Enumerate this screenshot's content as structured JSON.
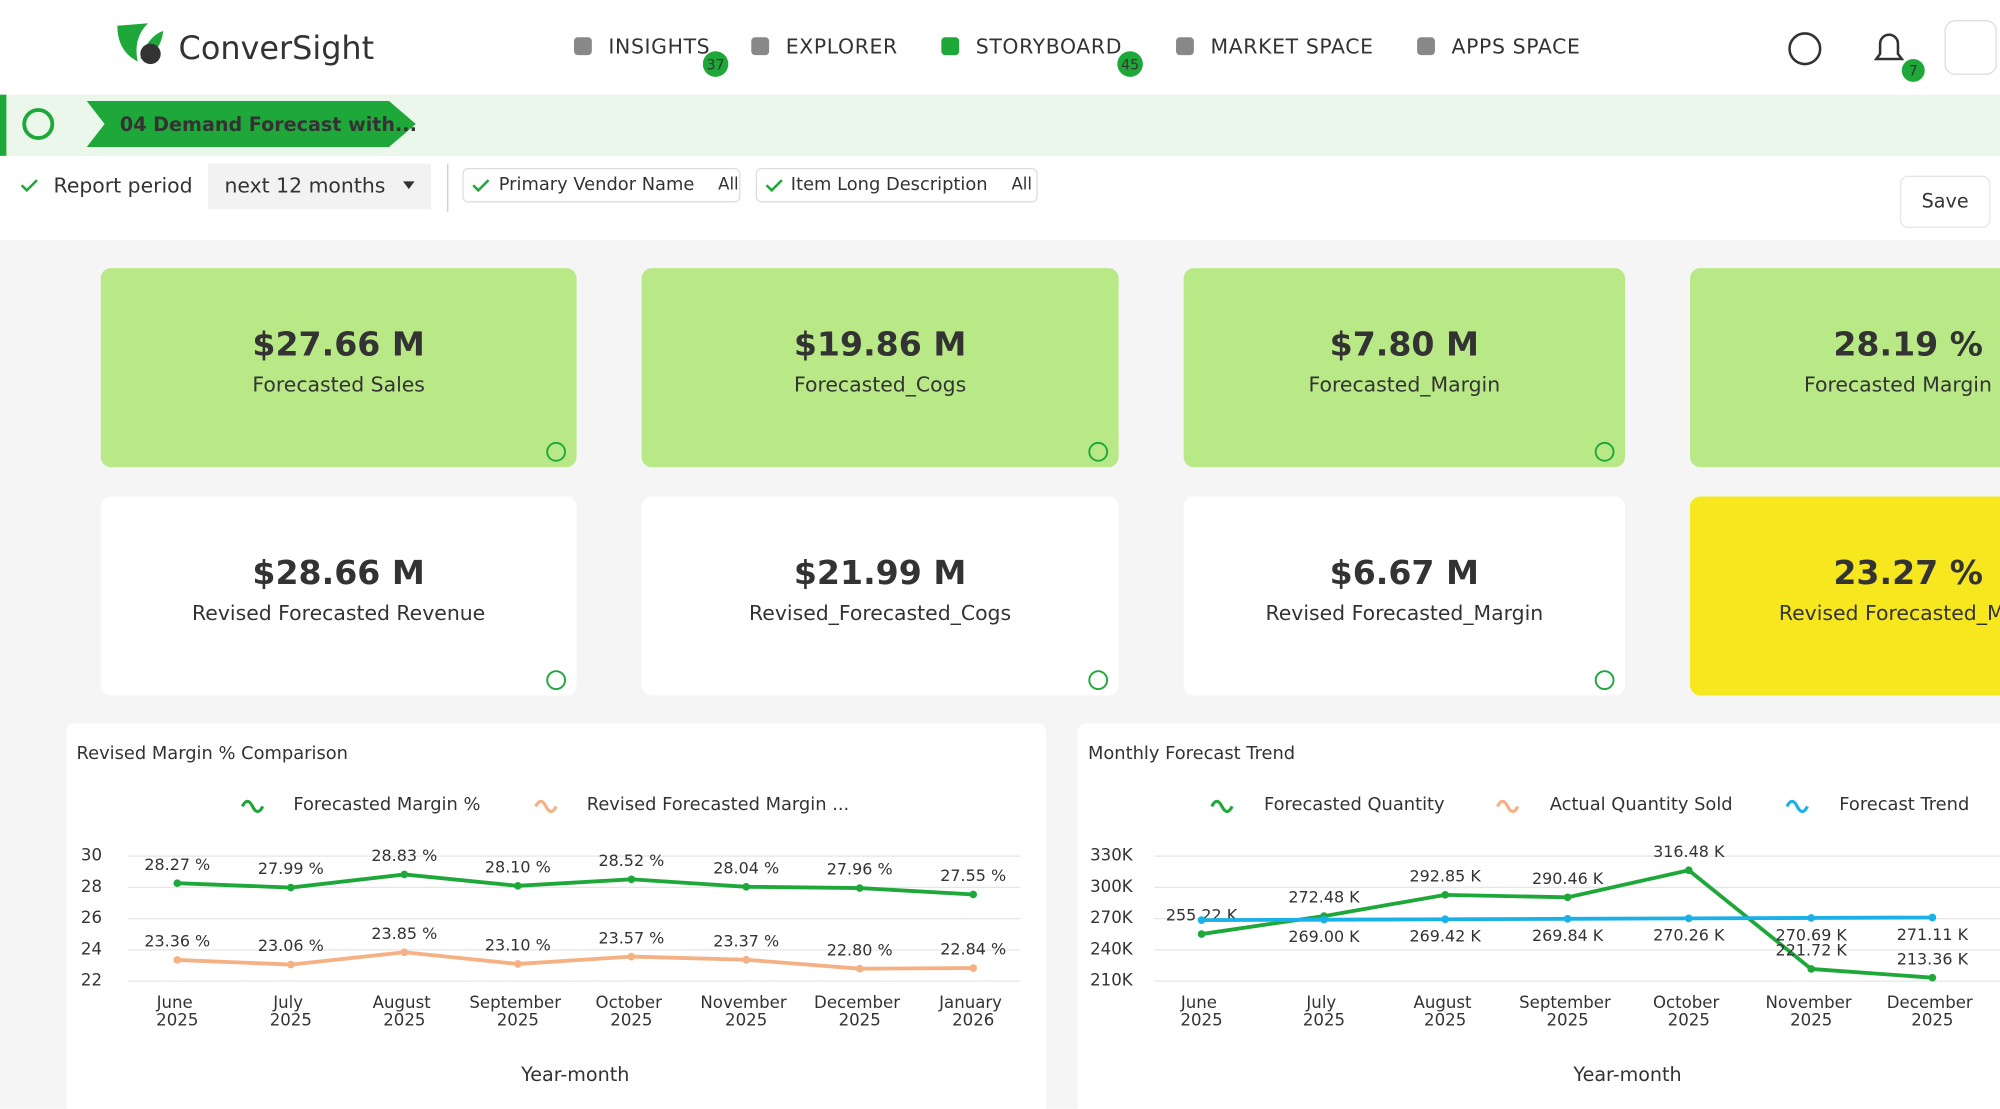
{
  "nav": {
    "logo": "ConverSight",
    "items": [
      {
        "label": "INSIGHTS",
        "badge": "37"
      },
      {
        "label": "EXPLORER"
      },
      {
        "label": "STORYBOARD",
        "badge": "45"
      },
      {
        "label": "MARKET SPACE"
      },
      {
        "label": "APPS SPACE"
      }
    ],
    "notifications": "7"
  },
  "breadcrumb": "04 Demand Forecast with...",
  "filters": {
    "period_label": "Report period",
    "period_value": "next 12 months",
    "chips": [
      {
        "label": "Primary Vendor Name",
        "value": "All"
      },
      {
        "label": "Item Long Description",
        "value": "All"
      }
    ],
    "save": "Save"
  },
  "kpis": [
    {
      "value": "$27.66 M",
      "label": "Forecasted Sales"
    },
    {
      "value": "$19.86 M",
      "label": "Forecasted_Cogs"
    },
    {
      "value": "$7.80 M",
      "label": "Forecasted_Margin"
    },
    {
      "value": "28.19 %",
      "label": "Forecasted Margin"
    },
    {
      "value": "$28.66 M",
      "label": "Revised Forecasted Revenue"
    },
    {
      "value": "$21.99 M",
      "label": "Revised_Forecasted_Cogs"
    },
    {
      "value": "$6.67 M",
      "label": "Revised Forecasted_Margin"
    },
    {
      "value": "23.27 %",
      "label": "Revised Forecasted_Ma"
    }
  ],
  "chart_data": [
    {
      "type": "line",
      "title": "Revised Margin % Comparison",
      "x_label": "Year-month",
      "categories": [
        "June 2025",
        "July 2025",
        "August 2025",
        "September 2025",
        "October 2025",
        "November 2025",
        "December 2025",
        "January 2026"
      ],
      "series": [
        {
          "name": "Forecasted Margin %",
          "color": "#1fa83a",
          "values": [
            28.27,
            27.99,
            28.83,
            28.1,
            28.52,
            28.04,
            27.96,
            27.55
          ],
          "value_labels": [
            "28.27 %",
            "27.99 %",
            "28.83 %",
            "28.10 %",
            "28.52 %",
            "28.04 %",
            "27.96 %",
            "27.55 %"
          ]
        },
        {
          "name": "Revised Forecasted Margin ...",
          "color": "#f5b083",
          "values": [
            23.36,
            23.06,
            23.85,
            23.1,
            23.57,
            23.37,
            22.8,
            22.84
          ],
          "value_labels": [
            "23.36 %",
            "23.06 %",
            "23.85 %",
            "23.10 %",
            "23.57 %",
            "23.37 %",
            "22.80 %",
            "22.84 %"
          ]
        }
      ],
      "ylim": [
        22,
        30
      ],
      "yticks": [
        22,
        24,
        26,
        28,
        30
      ],
      "grid": true
    },
    {
      "type": "line",
      "title": "Monthly Forecast Trend",
      "x_label": "Year-month",
      "categories": [
        "June 2025",
        "July 2025",
        "August 2025",
        "September 2025",
        "October 2025",
        "November 2025",
        "December 2025"
      ],
      "series": [
        {
          "name": "Forecasted Quantity",
          "color": "#1fa83a",
          "values": [
            255220,
            272480,
            292850,
            290460,
            316480,
            221720,
            213360
          ],
          "value_labels": [
            "255.22 K",
            "272.48 K",
            "292.85 K",
            "290.46 K",
            "316.48 K",
            "221.72 K",
            "213.36 K"
          ]
        },
        {
          "name": "Actual Quantity Sold",
          "color": "#f5b083",
          "values": [
            null,
            null,
            null,
            null,
            null,
            null,
            null
          ]
        },
        {
          "name": "Forecast Trend",
          "color": "#1ab0e8",
          "values": [
            268580,
            269000,
            269420,
            269840,
            270260,
            270690,
            271110
          ],
          "value_labels": [
            null,
            "269.00 K",
            "269.42 K",
            "269.84 K",
            "270.26 K",
            "270.69 K",
            "271.11 K"
          ]
        }
      ],
      "ylim": [
        210000,
        330000
      ],
      "yticks": [
        {
          "value": 210000,
          "label": "210K"
        },
        {
          "value": 240000,
          "label": "240K"
        },
        {
          "value": 270000,
          "label": "270K"
        },
        {
          "value": 300000,
          "label": "300K"
        },
        {
          "value": 330000,
          "label": "330K"
        }
      ],
      "grid": true
    }
  ]
}
